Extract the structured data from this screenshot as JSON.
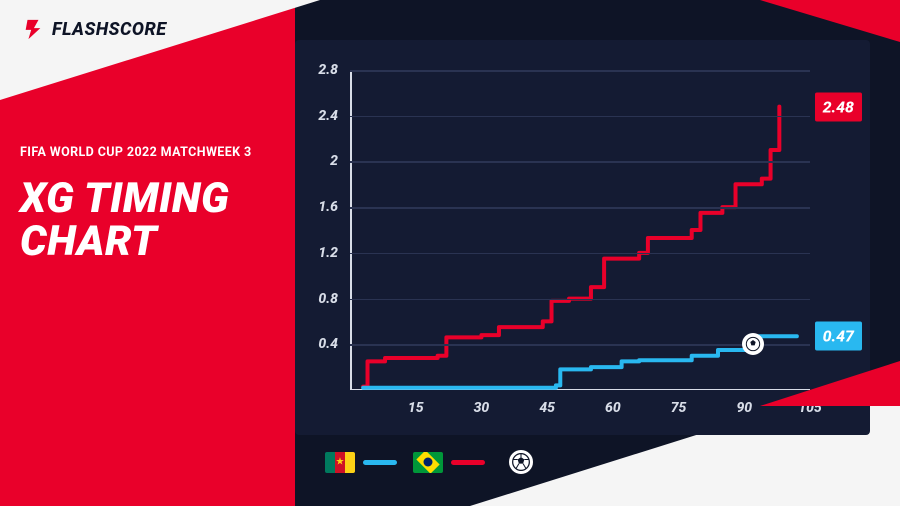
{
  "brand": {
    "name": "FLASHSCORE"
  },
  "subtitle": "FIFA WORLD CUP 2022 MATCHWEEK 3",
  "title": "XG TIMING\nCHART",
  "colors": {
    "background_dark": "#0e1426",
    "panel_dark": "#141b33",
    "brand_red": "#e9002a",
    "light": "#f5f5f5",
    "grid": "#2a3352",
    "axis_text": "#d8dde8",
    "cameroon_line": "#29b8f0",
    "brazil_line": "#e9002a"
  },
  "chart": {
    "type": "step-line",
    "xlim": [
      0,
      105
    ],
    "ylim": [
      0,
      2.8
    ],
    "xticks": [
      15,
      30,
      45,
      60,
      75,
      90,
      105
    ],
    "yticks": [
      0.4,
      0.8,
      1.2,
      1.6,
      2,
      2.4,
      2.8
    ],
    "xlabel_fontsize": 14,
    "ylabel_fontsize": 14,
    "line_width": 4,
    "series": {
      "brazil": {
        "name": "Brazil",
        "color": "#e9002a",
        "final_value": "2.48",
        "points": [
          [
            3,
            0.03
          ],
          [
            4,
            0.25
          ],
          [
            8,
            0.28
          ],
          [
            20,
            0.3
          ],
          [
            22,
            0.46
          ],
          [
            30,
            0.48
          ],
          [
            34,
            0.55
          ],
          [
            44,
            0.6
          ],
          [
            46,
            0.78
          ],
          [
            50,
            0.8
          ],
          [
            55,
            0.9
          ],
          [
            58,
            1.15
          ],
          [
            66,
            1.2
          ],
          [
            68,
            1.33
          ],
          [
            78,
            1.4
          ],
          [
            80,
            1.55
          ],
          [
            85,
            1.6
          ],
          [
            88,
            1.8
          ],
          [
            94,
            1.85
          ],
          [
            96,
            2.1
          ],
          [
            98,
            2.48
          ]
        ]
      },
      "cameroon": {
        "name": "Cameroon",
        "color": "#29b8f0",
        "final_value": "0.47",
        "points": [
          [
            3,
            0.02
          ],
          [
            30,
            0.02
          ],
          [
            47,
            0.04
          ],
          [
            48,
            0.18
          ],
          [
            55,
            0.2
          ],
          [
            62,
            0.25
          ],
          [
            66,
            0.26
          ],
          [
            78,
            0.3
          ],
          [
            84,
            0.35
          ],
          [
            92,
            0.4
          ],
          [
            93,
            0.47
          ],
          [
            102,
            0.47
          ]
        ]
      }
    },
    "goals": [
      {
        "team": "cameroon",
        "minute": 92,
        "xg_at_goal": 0.4
      }
    ]
  },
  "legend": {
    "cameroon": {
      "label": "Cameroon",
      "flag_colors": {
        "left": "#007a5e",
        "mid": "#ce1126",
        "right": "#fcd116",
        "star": "#fcd116"
      },
      "line_color": "#29b8f0"
    },
    "brazil": {
      "label": "Brazil",
      "flag_colors": {
        "bg": "#009739",
        "diamond": "#fedd00",
        "circle": "#012169"
      },
      "line_color": "#e9002a"
    },
    "goal_icon_label": "Goal"
  }
}
